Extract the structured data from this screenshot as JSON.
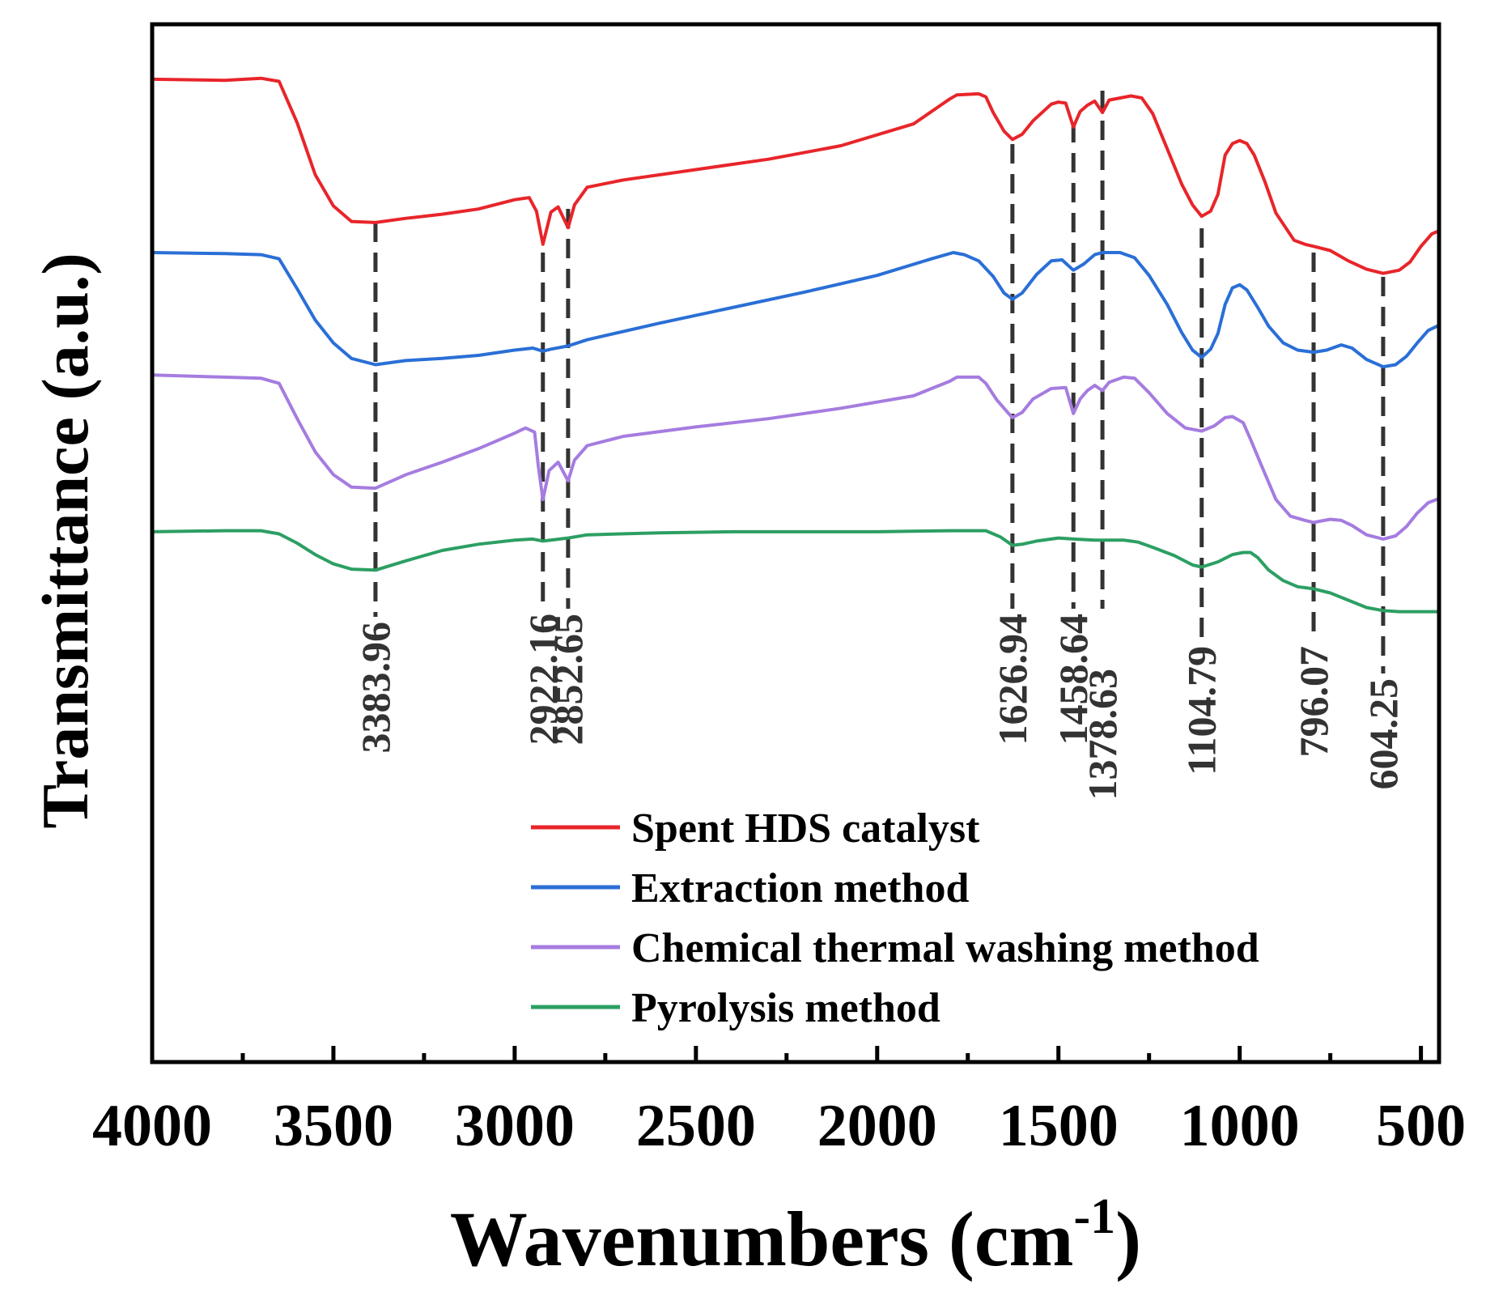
{
  "chart_data": {
    "type": "line",
    "title": "",
    "xlabel": "Wavenumbers (cm",
    "xlabel_superscript": "-1",
    "xlabel_suffix": ")",
    "ylabel": "Transmittance (a.u.)",
    "xlim": [
      4000,
      450
    ],
    "ylim": [
      0,
      100
    ],
    "y_ticks_shown": false,
    "x_major_ticks": [
      4000,
      3500,
      3000,
      2500,
      2000,
      1500,
      1000,
      500
    ],
    "x_minor_ticks": [
      3750,
      3250,
      2750,
      2250,
      1750,
      1250,
      750
    ],
    "legend_position": "bottom-center",
    "series": [
      {
        "name": "Spent HDS catalyst",
        "color": "#e8252a",
        "points": [
          [
            4000,
            94.7
          ],
          [
            3800,
            94.6
          ],
          [
            3700,
            94.8
          ],
          [
            3650,
            94.5
          ],
          [
            3600,
            90.5
          ],
          [
            3550,
            85.5
          ],
          [
            3500,
            82.5
          ],
          [
            3450,
            81.0
          ],
          [
            3383.96,
            80.9
          ],
          [
            3300,
            81.3
          ],
          [
            3200,
            81.7
          ],
          [
            3100,
            82.2
          ],
          [
            3000,
            83.1
          ],
          [
            2960,
            83.3
          ],
          [
            2940,
            82.0
          ],
          [
            2922.16,
            78.8
          ],
          [
            2900,
            81.9
          ],
          [
            2880,
            82.4
          ],
          [
            2852.65,
            80.4
          ],
          [
            2835,
            82.6
          ],
          [
            2800,
            84.3
          ],
          [
            2700,
            85.0
          ],
          [
            2500,
            86.0
          ],
          [
            2300,
            87.0
          ],
          [
            2100,
            88.3
          ],
          [
            1900,
            90.4
          ],
          [
            1800,
            92.8
          ],
          [
            1780,
            93.2
          ],
          [
            1720,
            93.3
          ],
          [
            1700,
            93.0
          ],
          [
            1680,
            91.5
          ],
          [
            1650,
            89.7
          ],
          [
            1626.94,
            88.9
          ],
          [
            1600,
            89.4
          ],
          [
            1570,
            90.7
          ],
          [
            1520,
            92.3
          ],
          [
            1500,
            92.5
          ],
          [
            1480,
            92.4
          ],
          [
            1458.64,
            90.1
          ],
          [
            1440,
            91.6
          ],
          [
            1420,
            92.2
          ],
          [
            1400,
            92.6
          ],
          [
            1378.63,
            91.5
          ],
          [
            1360,
            92.7
          ],
          [
            1300,
            93.1
          ],
          [
            1270,
            92.9
          ],
          [
            1240,
            91.4
          ],
          [
            1200,
            88.0
          ],
          [
            1160,
            84.6
          ],
          [
            1130,
            82.6
          ],
          [
            1104.79,
            81.5
          ],
          [
            1080,
            82.0
          ],
          [
            1060,
            83.6
          ],
          [
            1040,
            87.4
          ],
          [
            1020,
            88.5
          ],
          [
            1000,
            88.8
          ],
          [
            980,
            88.5
          ],
          [
            960,
            87.4
          ],
          [
            930,
            84.8
          ],
          [
            900,
            81.8
          ],
          [
            850,
            79.2
          ],
          [
            820,
            78.8
          ],
          [
            796.07,
            78.6
          ],
          [
            750,
            78.2
          ],
          [
            700,
            77.2
          ],
          [
            650,
            76.4
          ],
          [
            604.25,
            76.0
          ],
          [
            560,
            76.3
          ],
          [
            530,
            77.1
          ],
          [
            500,
            78.6
          ],
          [
            470,
            79.8
          ],
          [
            450,
            80.1
          ]
        ]
      },
      {
        "name": "Extraction method",
        "color": "#2a6fd6",
        "points": [
          [
            4000,
            78.0
          ],
          [
            3800,
            77.9
          ],
          [
            3700,
            77.8
          ],
          [
            3650,
            77.4
          ],
          [
            3600,
            74.5
          ],
          [
            3550,
            71.5
          ],
          [
            3500,
            69.3
          ],
          [
            3450,
            67.8
          ],
          [
            3383.96,
            67.2
          ],
          [
            3300,
            67.6
          ],
          [
            3200,
            67.8
          ],
          [
            3100,
            68.1
          ],
          [
            3000,
            68.6
          ],
          [
            2950,
            68.8
          ],
          [
            2922.16,
            68.5
          ],
          [
            2900,
            68.7
          ],
          [
            2852.65,
            69.0
          ],
          [
            2800,
            69.6
          ],
          [
            2600,
            71.2
          ],
          [
            2400,
            72.7
          ],
          [
            2200,
            74.2
          ],
          [
            2000,
            75.8
          ],
          [
            1850,
            77.4
          ],
          [
            1790,
            78.0
          ],
          [
            1760,
            77.8
          ],
          [
            1720,
            77.2
          ],
          [
            1680,
            75.7
          ],
          [
            1650,
            74.1
          ],
          [
            1626.94,
            73.5
          ],
          [
            1600,
            74.1
          ],
          [
            1560,
            75.9
          ],
          [
            1520,
            77.2
          ],
          [
            1490,
            77.3
          ],
          [
            1458.64,
            76.3
          ],
          [
            1430,
            76.9
          ],
          [
            1400,
            77.8
          ],
          [
            1378.63,
            78.0
          ],
          [
            1330,
            78.0
          ],
          [
            1290,
            77.5
          ],
          [
            1250,
            75.8
          ],
          [
            1200,
            73.0
          ],
          [
            1160,
            70.3
          ],
          [
            1130,
            68.6
          ],
          [
            1104.79,
            67.9
          ],
          [
            1080,
            68.7
          ],
          [
            1060,
            70.2
          ],
          [
            1040,
            73.0
          ],
          [
            1020,
            74.6
          ],
          [
            1000,
            74.9
          ],
          [
            980,
            74.4
          ],
          [
            950,
            72.7
          ],
          [
            920,
            70.9
          ],
          [
            880,
            69.3
          ],
          [
            840,
            68.6
          ],
          [
            796.07,
            68.4
          ],
          [
            760,
            68.6
          ],
          [
            720,
            69.1
          ],
          [
            690,
            68.8
          ],
          [
            650,
            67.7
          ],
          [
            604.25,
            67.0
          ],
          [
            570,
            67.2
          ],
          [
            540,
            68.0
          ],
          [
            510,
            69.3
          ],
          [
            480,
            70.5
          ],
          [
            450,
            71.0
          ]
        ]
      },
      {
        "name": "Chemical thermal washing method",
        "color": "#a57ce0",
        "points": [
          [
            4000,
            66.2
          ],
          [
            3800,
            66.0
          ],
          [
            3700,
            65.9
          ],
          [
            3650,
            65.4
          ],
          [
            3600,
            62.0
          ],
          [
            3550,
            58.8
          ],
          [
            3500,
            56.6
          ],
          [
            3450,
            55.4
          ],
          [
            3383.96,
            55.3
          ],
          [
            3300,
            56.6
          ],
          [
            3200,
            57.8
          ],
          [
            3100,
            59.1
          ],
          [
            3000,
            60.6
          ],
          [
            2970,
            61.1
          ],
          [
            2945,
            60.7
          ],
          [
            2935,
            57.5
          ],
          [
            2922.16,
            54.2
          ],
          [
            2905,
            57.0
          ],
          [
            2880,
            57.8
          ],
          [
            2852.65,
            56.0
          ],
          [
            2835,
            58.0
          ],
          [
            2800,
            59.4
          ],
          [
            2700,
            60.3
          ],
          [
            2500,
            61.2
          ],
          [
            2300,
            62.0
          ],
          [
            2100,
            63.0
          ],
          [
            1900,
            64.2
          ],
          [
            1800,
            65.6
          ],
          [
            1780,
            66.0
          ],
          [
            1720,
            66.0
          ],
          [
            1700,
            65.4
          ],
          [
            1670,
            63.8
          ],
          [
            1640,
            62.6
          ],
          [
            1626.94,
            62.1
          ],
          [
            1600,
            62.6
          ],
          [
            1570,
            63.9
          ],
          [
            1520,
            64.9
          ],
          [
            1480,
            65.0
          ],
          [
            1458.64,
            62.5
          ],
          [
            1440,
            63.9
          ],
          [
            1420,
            64.7
          ],
          [
            1400,
            65.2
          ],
          [
            1378.63,
            64.7
          ],
          [
            1360,
            65.5
          ],
          [
            1320,
            66.0
          ],
          [
            1290,
            65.9
          ],
          [
            1250,
            64.5
          ],
          [
            1200,
            62.5
          ],
          [
            1150,
            61.1
          ],
          [
            1104.79,
            60.8
          ],
          [
            1070,
            61.3
          ],
          [
            1040,
            62.1
          ],
          [
            1020,
            62.2
          ],
          [
            1005,
            61.9
          ],
          [
            990,
            61.6
          ],
          [
            970,
            60.0
          ],
          [
            940,
            57.5
          ],
          [
            900,
            54.2
          ],
          [
            860,
            52.6
          ],
          [
            820,
            52.2
          ],
          [
            796.07,
            52.0
          ],
          [
            750,
            52.3
          ],
          [
            720,
            52.2
          ],
          [
            690,
            51.7
          ],
          [
            650,
            50.8
          ],
          [
            604.25,
            50.4
          ],
          [
            570,
            50.7
          ],
          [
            540,
            51.6
          ],
          [
            510,
            52.9
          ],
          [
            480,
            53.9
          ],
          [
            450,
            54.3
          ]
        ]
      },
      {
        "name": "Pyrolysis method",
        "color": "#2c9f63",
        "points": [
          [
            4000,
            51.1
          ],
          [
            3800,
            51.2
          ],
          [
            3700,
            51.2
          ],
          [
            3650,
            50.9
          ],
          [
            3600,
            50.0
          ],
          [
            3550,
            48.9
          ],
          [
            3500,
            48.0
          ],
          [
            3450,
            47.5
          ],
          [
            3383.96,
            47.4
          ],
          [
            3300,
            48.3
          ],
          [
            3200,
            49.3
          ],
          [
            3100,
            49.9
          ],
          [
            3000,
            50.3
          ],
          [
            2950,
            50.4
          ],
          [
            2922.16,
            50.2
          ],
          [
            2852.65,
            50.5
          ],
          [
            2800,
            50.8
          ],
          [
            2600,
            51.0
          ],
          [
            2400,
            51.1
          ],
          [
            2200,
            51.1
          ],
          [
            2000,
            51.1
          ],
          [
            1800,
            51.2
          ],
          [
            1700,
            51.2
          ],
          [
            1660,
            50.6
          ],
          [
            1626.94,
            49.8
          ],
          [
            1600,
            49.9
          ],
          [
            1560,
            50.2
          ],
          [
            1500,
            50.5
          ],
          [
            1458.64,
            50.4
          ],
          [
            1400,
            50.3
          ],
          [
            1378.63,
            50.3
          ],
          [
            1320,
            50.3
          ],
          [
            1280,
            50.1
          ],
          [
            1240,
            49.6
          ],
          [
            1180,
            48.8
          ],
          [
            1130,
            47.9
          ],
          [
            1104.79,
            47.7
          ],
          [
            1060,
            48.2
          ],
          [
            1020,
            48.9
          ],
          [
            990,
            49.1
          ],
          [
            970,
            49.1
          ],
          [
            950,
            48.6
          ],
          [
            920,
            47.4
          ],
          [
            880,
            46.4
          ],
          [
            840,
            45.8
          ],
          [
            796.07,
            45.6
          ],
          [
            750,
            45.2
          ],
          [
            700,
            44.5
          ],
          [
            650,
            43.8
          ],
          [
            604.25,
            43.5
          ],
          [
            560,
            43.4
          ],
          [
            500,
            43.4
          ],
          [
            450,
            43.4
          ]
        ]
      }
    ],
    "peak_annotations": [
      {
        "x": 3383.96,
        "label": "3383.96"
      },
      {
        "x": 2922.16,
        "label": "2922.16"
      },
      {
        "x": 2852.65,
        "label": "2852.65"
      },
      {
        "x": 1626.94,
        "label": "1626.94"
      },
      {
        "x": 1458.64,
        "label": "1458.64"
      },
      {
        "x": 1378.63,
        "label": "1378.63"
      },
      {
        "x": 1104.79,
        "label": "1104.79"
      },
      {
        "x": 796.07,
        "label": "796.07"
      },
      {
        "x": 604.25,
        "label": "604.25"
      }
    ]
  }
}
